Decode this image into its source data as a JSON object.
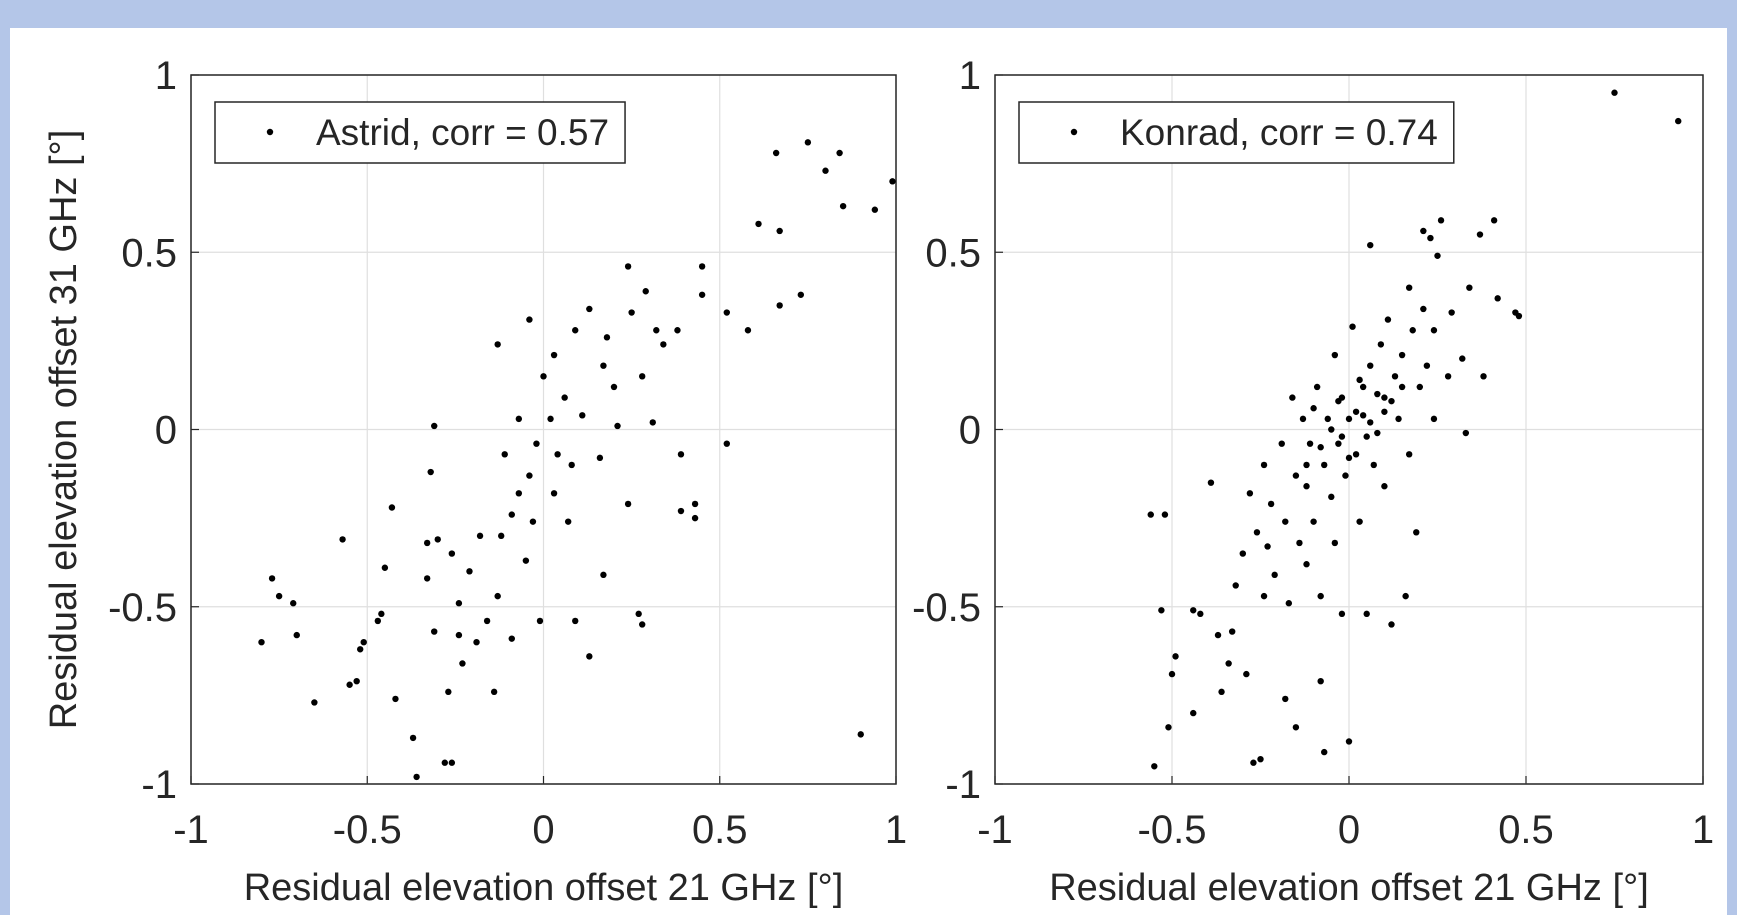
{
  "chart_data": [
    {
      "type": "scatter",
      "xlabel": "Residual elevation offset 21 GHz  [°]",
      "ylabel": "Residual elevation offset 31 GHz  [°]",
      "xlim": [
        -1,
        1
      ],
      "ylim": [
        -1,
        1
      ],
      "xticks": [
        -1,
        -0.5,
        0,
        0.5,
        1
      ],
      "yticks": [
        -1,
        -0.5,
        0,
        0.5,
        1
      ],
      "grid": true,
      "legend": "northwest",
      "series": [
        {
          "name": "Astrid, corr = 0.57",
          "color": "#000000",
          "x": [
            -0.8,
            -0.77,
            -0.75,
            -0.71,
            -0.7,
            -0.65,
            -0.57,
            -0.55,
            -0.53,
            -0.52,
            -0.51,
            -0.47,
            -0.46,
            -0.45,
            -0.43,
            -0.42,
            -0.37,
            -0.36,
            -0.33,
            -0.33,
            -0.32,
            -0.31,
            -0.31,
            -0.3,
            -0.28,
            -0.26,
            -0.27,
            -0.26,
            -0.24,
            -0.24,
            -0.23,
            -0.21,
            -0.19,
            -0.18,
            -0.16,
            -0.14,
            -0.13,
            -0.13,
            -0.12,
            -0.11,
            -0.09,
            -0.09,
            -0.07,
            -0.07,
            -0.05,
            -0.04,
            -0.04,
            -0.03,
            -0.02,
            -0.01,
            0,
            0.02,
            0.03,
            0.03,
            0.04,
            0.06,
            0.07,
            0.08,
            0.09,
            0.09,
            0.11,
            0.13,
            0.13,
            0.16,
            0.17,
            0.17,
            0.18,
            0.2,
            0.21,
            0.24,
            0.24,
            0.25,
            0.27,
            0.28,
            0.28,
            0.29,
            0.31,
            0.32,
            0.34,
            0.38,
            0.39,
            0.39,
            0.43,
            0.43,
            0.45,
            0.45,
            0.52,
            0.52,
            0.58,
            0.61,
            0.66,
            0.67,
            0.67,
            0.73,
            0.75,
            0.8,
            0.84,
            0.85,
            0.9,
            0.94,
            0.99
          ],
          "values": [
            -0.6,
            -0.42,
            -0.47,
            -0.49,
            -0.58,
            -0.77,
            -0.31,
            -0.72,
            -0.71,
            -0.62,
            -0.6,
            -0.54,
            -0.52,
            -0.39,
            -0.22,
            -0.76,
            -0.87,
            -0.98,
            -0.42,
            -0.32,
            -0.12,
            0.01,
            -0.57,
            -0.31,
            -0.94,
            -0.94,
            -0.74,
            -0.35,
            -0.58,
            -0.49,
            -0.66,
            -0.4,
            -0.6,
            -0.3,
            -0.54,
            -0.74,
            -0.47,
            0.24,
            -0.3,
            -0.07,
            -0.59,
            -0.24,
            -0.18,
            0.03,
            -0.37,
            0.31,
            -0.13,
            -0.26,
            -0.04,
            -0.54,
            0.15,
            0.03,
            -0.18,
            0.21,
            -0.07,
            0.09,
            -0.26,
            -0.1,
            -0.54,
            0.28,
            0.04,
            -0.64,
            0.34,
            -0.08,
            -0.41,
            0.18,
            0.26,
            0.12,
            0.01,
            -0.21,
            0.46,
            0.33,
            -0.52,
            0.15,
            -0.55,
            0.39,
            0.02,
            0.28,
            0.24,
            0.28,
            -0.07,
            -0.23,
            -0.25,
            -0.21,
            0.46,
            0.38,
            -0.04,
            0.33,
            0.28,
            0.58,
            0.78,
            0.56,
            0.35,
            0.38,
            0.81,
            0.73,
            0.78,
            0.63,
            -0.86,
            0.62,
            0.7
          ]
        }
      ]
    },
    {
      "type": "scatter",
      "xlabel": "Residual elevation offset 21 GHz  [°]",
      "xlim": [
        -1,
        1
      ],
      "ylim": [
        -1,
        1
      ],
      "xticks": [
        -1,
        -0.5,
        0,
        0.5,
        1
      ],
      "yticks": [
        -1,
        -0.5,
        0,
        0.5,
        1
      ],
      "grid": true,
      "legend": "northwest",
      "series": [
        {
          "name": "Konrad, corr = 0.74",
          "color": "#000000",
          "x": [
            0.75,
            0.93,
            -0.56,
            -0.52,
            -0.55,
            -0.53,
            -0.51,
            -0.5,
            -0.49,
            -0.44,
            -0.44,
            -0.42,
            -0.39,
            -0.37,
            -0.36,
            -0.34,
            -0.33,
            -0.32,
            -0.3,
            -0.29,
            -0.28,
            -0.27,
            -0.26,
            -0.25,
            -0.24,
            -0.24,
            -0.23,
            -0.22,
            -0.21,
            -0.19,
            -0.18,
            -0.18,
            -0.17,
            -0.16,
            -0.15,
            -0.15,
            -0.14,
            -0.13,
            -0.12,
            -0.12,
            -0.11,
            -0.1,
            -0.09,
            -0.08,
            -0.08,
            -0.07,
            -0.07,
            -0.06,
            -0.05,
            -0.04,
            -0.04,
            -0.03,
            -0.02,
            -0.02,
            -0.01,
            0,
            0,
            0.01,
            0.02,
            0.03,
            0.03,
            0.04,
            0.05,
            0.06,
            0.06,
            0.07,
            0.08,
            0.09,
            0.1,
            0.1,
            0.11,
            0.12,
            0.13,
            0.14,
            0.15,
            0.16,
            0.17,
            0.17,
            0.18,
            0.19,
            0.2,
            0.21,
            0.21,
            0.22,
            0.23,
            0.24,
            0.24,
            0.25,
            0.26,
            0.28,
            0.29,
            0.32,
            0.33,
            0.34,
            0.37,
            0.38,
            0.41,
            0.42,
            0.47,
            0.48,
            0.02,
            -0.03,
            0.05,
            -0.05,
            0.08,
            0,
            0.1,
            -0.08,
            0.04,
            -0.02,
            0.12,
            0.06,
            -0.1,
            0.15,
            -0.12
          ],
          "values": [
            0.95,
            0.87,
            -0.24,
            -0.24,
            -0.95,
            -0.51,
            -0.84,
            -0.69,
            -0.64,
            -0.8,
            -0.51,
            -0.52,
            -0.15,
            -0.58,
            -0.74,
            -0.66,
            -0.57,
            -0.44,
            -0.35,
            -0.69,
            -0.18,
            -0.94,
            -0.29,
            -0.93,
            -0.47,
            -0.1,
            -0.33,
            -0.21,
            -0.41,
            -0.04,
            -0.76,
            -0.26,
            -0.49,
            0.09,
            -0.84,
            -0.13,
            -0.32,
            0.03,
            -0.38,
            -0.16,
            -0.04,
            -0.26,
            0.12,
            -0.47,
            -0.71,
            -0.1,
            -0.91,
            0.03,
            -0.19,
            0.21,
            -0.32,
            -0.04,
            -0.52,
            0.09,
            -0.13,
            0.03,
            -0.88,
            0.29,
            -0.07,
            0.14,
            -0.26,
            0.04,
            -0.52,
            0.52,
            0.18,
            -0.1,
            -0.01,
            0.24,
            0.09,
            -0.16,
            0.31,
            -0.55,
            0.15,
            0.03,
            0.21,
            -0.47,
            0.4,
            -0.07,
            0.28,
            -0.29,
            0.12,
            0.34,
            0.56,
            0.18,
            0.54,
            0.28,
            0.03,
            0.49,
            0.59,
            0.15,
            0.33,
            0.2,
            -0.01,
            0.4,
            0.55,
            0.15,
            0.59,
            0.37,
            0.33,
            0.32,
            0.05,
            0.08,
            -0.02,
            0,
            0.1,
            -0.08,
            0.05,
            -0.05,
            0.12,
            -0.02,
            0.08,
            0.02,
            0.06,
            0.12,
            -0.1
          ]
        }
      ]
    }
  ]
}
